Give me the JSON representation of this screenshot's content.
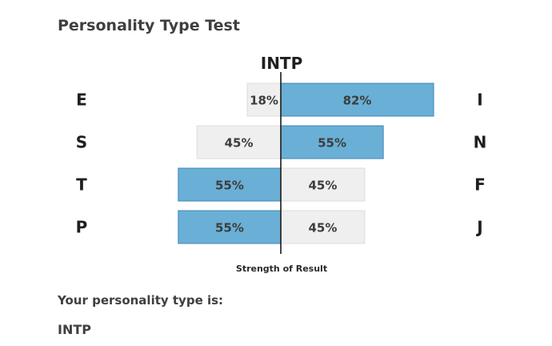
{
  "page": {
    "title": "Personality Type Test",
    "result_label": "Your personality type is:",
    "result_value": "INTP"
  },
  "chart_data": {
    "type": "bar",
    "title": "INTP",
    "xlabel": "Strength of Result",
    "ylabel": "",
    "xlim": [
      0,
      100
    ],
    "grid": false,
    "legend": "none",
    "categories": [
      {
        "left": "E",
        "right": "I"
      },
      {
        "left": "S",
        "right": "N"
      },
      {
        "left": "T",
        "right": "F"
      },
      {
        "left": "P",
        "right": "J"
      }
    ],
    "series": [
      {
        "values": [
          18,
          45,
          55,
          55
        ]
      },
      {
        "values": [
          82,
          55,
          45,
          45
        ]
      }
    ],
    "value_labels_left": [
      "18%",
      "45%",
      "55%",
      "55%"
    ],
    "value_labels_right": [
      "82%",
      "55%",
      "45%",
      "45%"
    ],
    "colors": {
      "dominant": "#6aafd6",
      "dominant_edge": "#3f87b8",
      "weaker": "#efefef",
      "weaker_edge": "#dcdcdc",
      "axis": "#1a1a1a",
      "text": "#3d3d3d"
    }
  }
}
